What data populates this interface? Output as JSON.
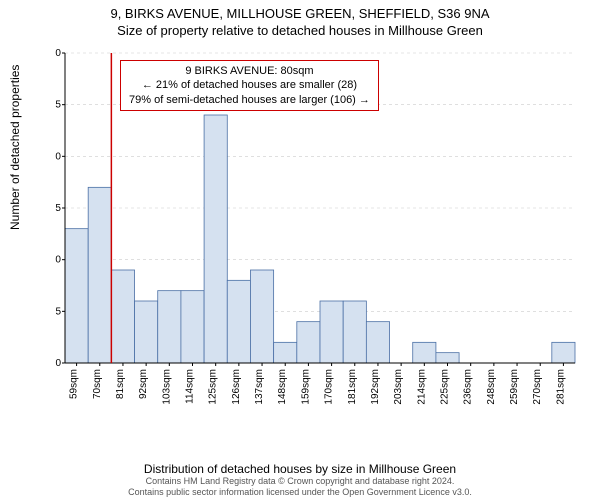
{
  "title_line1": "9, BIRKS AVENUE, MILLHOUSE GREEN, SHEFFIELD, S36 9NA",
  "title_line2": "Size of property relative to detached houses in Millhouse Green",
  "ylabel": "Number of detached properties",
  "xlabel": "Distribution of detached houses by size in Millhouse Green",
  "footer_line1": "Contains HM Land Registry data © Crown copyright and database right 2024.",
  "footer_line2": "Contains public sector information licensed under the Open Government Licence v3.0.",
  "chart": {
    "type": "histogram",
    "ylim": [
      0,
      30
    ],
    "ytick_step": 5,
    "yticks": [
      0,
      5,
      10,
      15,
      20,
      25,
      30
    ],
    "xtick_labels": [
      "59sqm",
      "70sqm",
      "81sqm",
      "92sqm",
      "103sqm",
      "114sqm",
      "125sqm",
      "126sqm",
      "137sqm",
      "148sqm",
      "159sqm",
      "170sqm",
      "181sqm",
      "192sqm",
      "203sqm",
      "214sqm",
      "225sqm",
      "236sqm",
      "248sqm",
      "259sqm",
      "270sqm",
      "281sqm"
    ],
    "categories": [
      "59",
      "70",
      "81",
      "92",
      "103",
      "114",
      "125",
      "126",
      "137",
      "148",
      "159",
      "170",
      "181",
      "192",
      "203",
      "214",
      "225",
      "236",
      "248",
      "259",
      "270",
      "281"
    ],
    "values": [
      13,
      17,
      9,
      6,
      7,
      7,
      24,
      8,
      9,
      2,
      4,
      6,
      6,
      4,
      0,
      2,
      1,
      0,
      0,
      0,
      0,
      2
    ],
    "bar_color": "#d5e1f0",
    "bar_stroke": "#4a6fa5",
    "grid_color": "#cccccc",
    "axis_color": "#000000",
    "background_color": "#ffffff",
    "marker_line_color": "#cc0000",
    "marker_line_x_index": 2,
    "label_fontsize": 12,
    "tick_fontsize": 10
  },
  "annotation": {
    "line1": "9 BIRKS AVENUE: 80sqm",
    "line2": "← 21% of detached houses are smaller (28)",
    "line3": "79% of semi-detached houses are larger (106) →",
    "border_color": "#cc0000",
    "text_color": "#000000",
    "bg_color": "#ffffff"
  }
}
